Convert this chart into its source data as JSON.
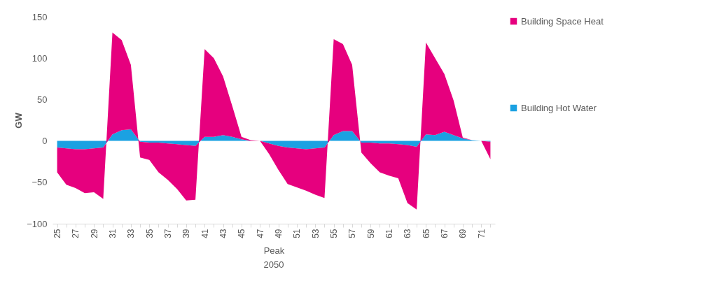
{
  "chart_data": {
    "type": "area",
    "stacked": true,
    "xlabel": "Peak",
    "ylabel": "GW",
    "annotations": [
      "2050"
    ],
    "legend": "right",
    "categories": [
      "25",
      null,
      "27",
      null,
      "29",
      null,
      "31",
      null,
      "33",
      null,
      "35",
      null,
      "37",
      null,
      "39",
      null,
      "41",
      null,
      "43",
      null,
      "45",
      null,
      "47",
      null,
      "49",
      null,
      "51",
      null,
      "53",
      null,
      "55",
      null,
      "57",
      null,
      "59",
      null,
      "61",
      null,
      "63",
      null,
      "65",
      null,
      "67",
      null,
      "69",
      null,
      "71",
      null
    ],
    "ylim": [
      -100,
      150
    ],
    "yticks": [
      -100,
      -50,
      0,
      50,
      100,
      150
    ],
    "series": [
      {
        "name": "Building Hot Water",
        "color": "#1ba1e2",
        "values": [
          -8,
          -9,
          -10,
          -10,
          -9,
          -8,
          8,
          13,
          14,
          -1,
          -2,
          -2,
          -3,
          -4,
          -5,
          -6,
          5,
          5,
          7,
          5,
          2,
          0,
          0,
          -3,
          -6,
          -8,
          -9,
          -10,
          -9,
          -8,
          7,
          12,
          12,
          -2,
          -2,
          -3,
          -3,
          -4,
          -5,
          -7,
          8,
          7,
          11,
          7,
          3,
          1,
          0,
          -1
        ]
      },
      {
        "name": "Building Space Heat",
        "color": "#e6007e",
        "values": [
          -30,
          -44,
          -47,
          -53,
          -53,
          -62,
          123,
          109,
          78,
          -19,
          -21,
          -36,
          -44,
          -54,
          -67,
          -65,
          106,
          95,
          71,
          37,
          3,
          1,
          0,
          -13,
          -29,
          -44,
          -47,
          -50,
          -56,
          -61,
          116,
          105,
          80,
          -12,
          -25,
          -35,
          -39,
          -41,
          -70,
          -76,
          111,
          93,
          70,
          42,
          1,
          0,
          0,
          -21
        ]
      }
    ]
  }
}
